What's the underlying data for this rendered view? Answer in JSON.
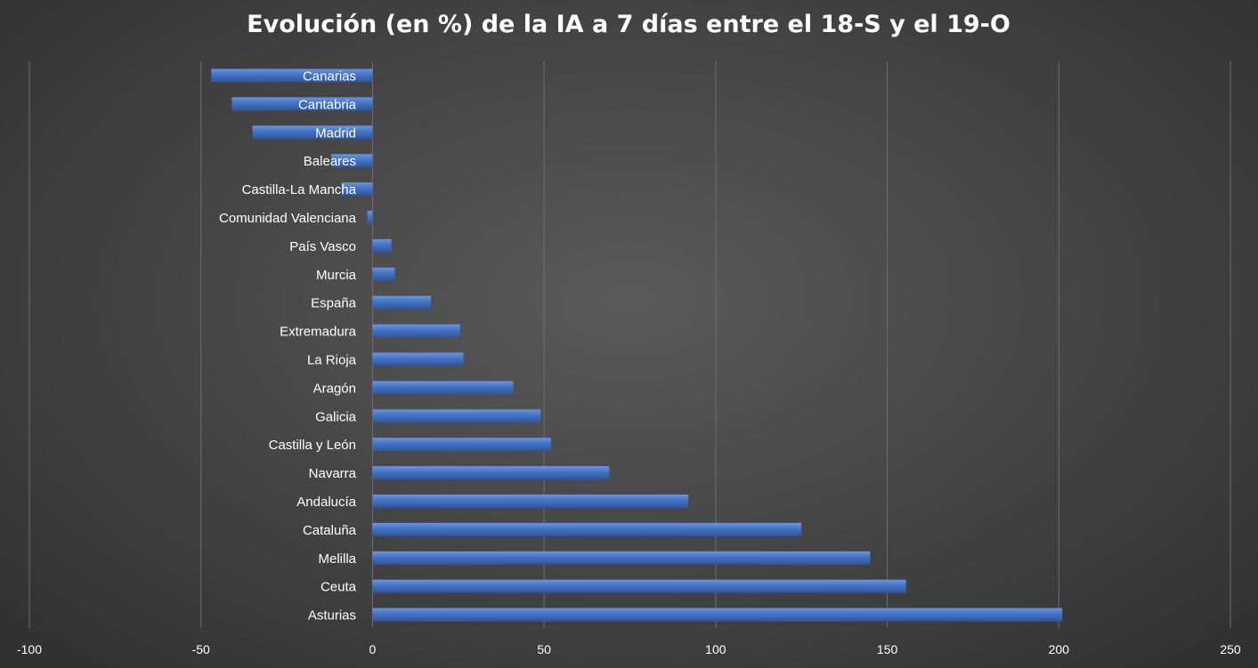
{
  "chart_data": {
    "type": "bar",
    "orientation": "horizontal",
    "title": "Evolución (en %) de la IA a 7 días entre el 18-S y el 19-O",
    "xlabel": "",
    "ylabel": "",
    "xlim": [
      -100,
      250
    ],
    "xticks": [
      -100,
      -50,
      0,
      50,
      100,
      150,
      200,
      250
    ],
    "xtick_labels": [
      "-100",
      "-50",
      "0",
      "50",
      "100",
      "150",
      "200",
      "250"
    ],
    "grid": true,
    "legend": "none",
    "bar_color": "#4472c4",
    "categories": [
      "Canarias",
      "Cantabria",
      "Madrid",
      "Baleares",
      "Castilla-La Mancha",
      "Comunidad Valenciana",
      "País Vasco",
      "Murcia",
      "España",
      "Extremadura",
      "La Rioja",
      "Aragón",
      "Galicia",
      "Castilla y León",
      "Navarra",
      "Andalucía",
      "Cataluña",
      "Melilla",
      "Ceuta",
      "Asturias"
    ],
    "values": [
      -47,
      -41,
      -35,
      -12,
      -9,
      -1.5,
      5.5,
      6.5,
      17,
      25.5,
      26.5,
      41,
      49,
      52,
      69,
      92,
      125,
      145,
      155.5,
      201
    ]
  }
}
